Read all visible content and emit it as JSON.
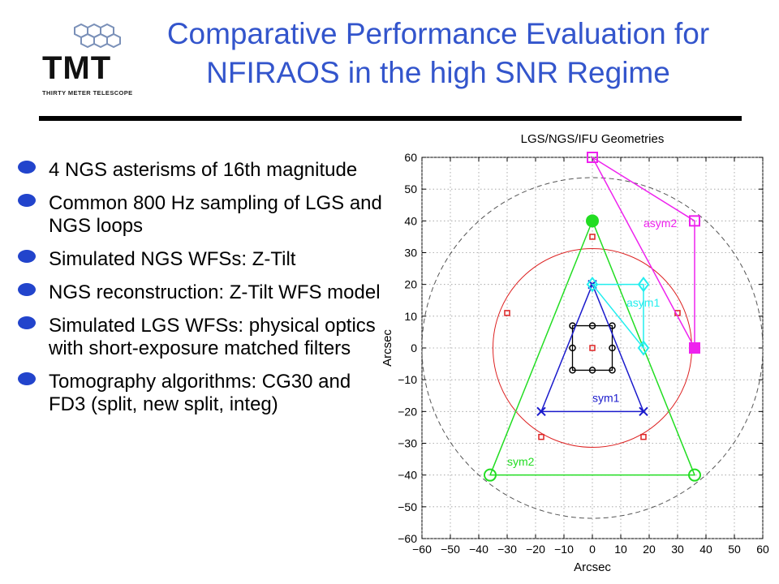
{
  "header": {
    "title_line1": "Comparative Performance Evaluation for",
    "title_line2": "NFIRAOS in the high SNR Regime",
    "logo_text": "TMT",
    "logo_subtext": "THIRTY METER TELESCOPE"
  },
  "bullets": [
    {
      "text": "4 NGS asterisms of 16th magnitude"
    },
    {
      "text": "Common 800 Hz sampling of LGS and NGS loops"
    },
    {
      "text": "Simulated NGS WFSs: Z-Tilt"
    },
    {
      "text": "NGS reconstruction: Z-Tilt WFS model"
    },
    {
      "text": "Simulated LGS WFSs: physical optics with short-exposure matched filters"
    },
    {
      "text": "Tomography algorithms: CG30 and FD3 (split, new split, integ)"
    }
  ],
  "colors": {
    "title": "#3355cc",
    "bullet": "#2244cc",
    "sym1": "#1a1acc",
    "sym2": "#22dd22",
    "asym1": "#22eeee",
    "asym2": "#ee22ee",
    "lgs": "#dd2222",
    "ifu": "#000000"
  },
  "chart_data": {
    "type": "scatter",
    "title": "LGS/NGS/IFU Geometries",
    "xlabel": "Arcsec",
    "ylabel": "Arcsec",
    "xlim": [
      -60,
      60
    ],
    "ylim": [
      -60,
      60
    ],
    "xticks": [
      -60,
      -50,
      -40,
      -30,
      -20,
      -10,
      0,
      10,
      20,
      30,
      40,
      50,
      60
    ],
    "yticks": [
      -60,
      -50,
      -40,
      -30,
      -20,
      -10,
      0,
      10,
      20,
      30,
      40,
      50,
      60
    ],
    "grid": true,
    "circles": [
      {
        "name": "outer",
        "radius": 60,
        "style": "dashed",
        "color": "#555555"
      },
      {
        "name": "lgs-ring",
        "radius": 35,
        "style": "solid",
        "color": "#dd2222"
      }
    ],
    "series": [
      {
        "name": "sym1",
        "marker": "x",
        "color": "#1a1acc",
        "closed": true,
        "points": [
          [
            0,
            20
          ],
          [
            18,
            -20
          ],
          [
            -18,
            -20
          ]
        ],
        "label_at": [
          0,
          -17
        ]
      },
      {
        "name": "sym2",
        "marker": "o",
        "color": "#22dd22",
        "closed": true,
        "points": [
          [
            0,
            40
          ],
          [
            36,
            -40
          ],
          [
            -36,
            -40
          ]
        ],
        "label_at": [
          -30,
          -37
        ]
      },
      {
        "name": "asym1",
        "marker": "d",
        "color": "#22eeee",
        "closed": true,
        "points": [
          [
            0,
            20
          ],
          [
            18,
            20
          ],
          [
            18,
            0
          ]
        ],
        "label_at": [
          12,
          13
        ]
      },
      {
        "name": "asym2",
        "marker": "s",
        "color": "#ee22ee",
        "closed": true,
        "points": [
          [
            0,
            60
          ],
          [
            36,
            40
          ],
          [
            36,
            0
          ]
        ],
        "label_at": [
          18,
          38
        ]
      }
    ],
    "lgs_points": [
      [
        0,
        35
      ],
      [
        -30,
        11
      ],
      [
        30,
        11
      ],
      [
        -18,
        -28
      ],
      [
        18,
        -28
      ],
      [
        0,
        0
      ]
    ],
    "ifu_grid": {
      "points": [
        [
          -7,
          7
        ],
        [
          0,
          7
        ],
        [
          7,
          7
        ],
        [
          -7,
          0
        ],
        [
          7,
          0
        ],
        [
          -7,
          -7
        ],
        [
          0,
          -7
        ],
        [
          7,
          -7
        ]
      ],
      "box": [
        [
          -7,
          7
        ],
        [
          7,
          7
        ],
        [
          7,
          -7
        ],
        [
          -7,
          -7
        ]
      ]
    },
    "filled_markers": [
      {
        "series": "sym2",
        "point": [
          0,
          40
        ],
        "shape": "circle"
      },
      {
        "series": "asym2",
        "point": [
          36,
          0
        ],
        "shape": "square"
      }
    ]
  }
}
